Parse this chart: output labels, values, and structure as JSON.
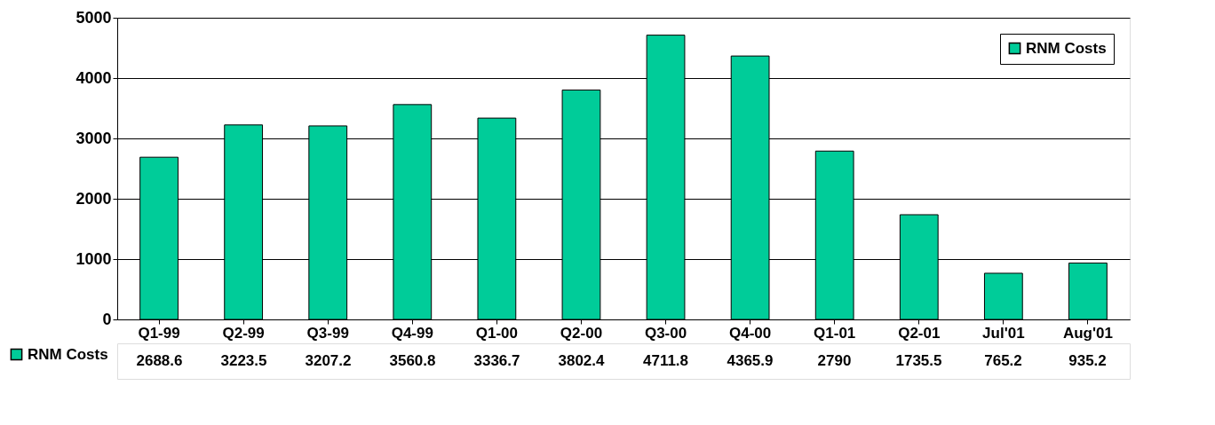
{
  "chart_data": {
    "type": "bar",
    "categories": [
      "Q1-99",
      "Q2-99",
      "Q3-99",
      "Q4-99",
      "Q1-00",
      "Q2-00",
      "Q3-00",
      "Q4-00",
      "Q1-01",
      "Q2-01",
      "Jul'01",
      "Aug'01"
    ],
    "series": [
      {
        "name": "RNM Costs",
        "color": "#00cc99",
        "values": [
          2688.6,
          3223.5,
          3207.2,
          3560.8,
          3336.7,
          3802.4,
          4711.8,
          4365.9,
          2790,
          1735.5,
          765.2,
          935.2
        ]
      }
    ],
    "ylim": [
      0,
      5000
    ],
    "yticks": [
      0,
      1000,
      2000,
      3000,
      4000,
      5000
    ],
    "grid": "y",
    "legend": "top right",
    "data_labels": true
  }
}
